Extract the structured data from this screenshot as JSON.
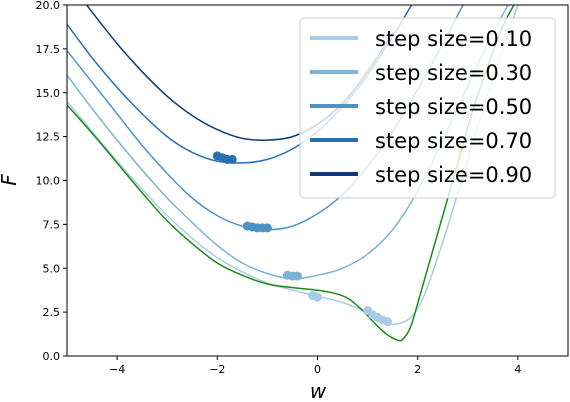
{
  "chart_data": {
    "type": "line",
    "title": "",
    "xlabel": "w",
    "ylabel": "F",
    "xlim": [
      -5,
      5
    ],
    "ylim": [
      0,
      20
    ],
    "grid": false,
    "legend_position": "top-right",
    "x_ticks": [
      -4,
      -2,
      0,
      2,
      4
    ],
    "x_tick_labels": [
      "−4",
      "−2",
      "0",
      "2",
      "4"
    ],
    "y_ticks": [
      0,
      2.5,
      5,
      7.5,
      10,
      12.5,
      15,
      17.5,
      20
    ],
    "y_tick_labels": [
      "0.0",
      "2.5",
      "5.0",
      "7.5",
      "10.0",
      "12.5",
      "15.0",
      "17.5",
      "20.0"
    ],
    "base_curve": {
      "color": "#1a8a1a",
      "x": [
        -5,
        -4.5,
        -4,
        -3.5,
        -3,
        -2.5,
        -2,
        -1.5,
        -1,
        -0.5,
        0,
        0.3,
        0.6,
        0.9,
        1.2,
        1.4,
        1.6,
        1.7,
        1.85,
        2.0,
        2.2,
        2.5,
        2.8,
        3.1,
        3.4,
        3.7,
        4.0
      ],
      "y": [
        14.3,
        12.7,
        11.0,
        9.3,
        7.7,
        6.4,
        5.3,
        4.6,
        4.1,
        3.9,
        3.75,
        3.6,
        3.3,
        2.6,
        1.7,
        1.2,
        0.9,
        0.95,
        1.6,
        3.0,
        5.0,
        8.0,
        11.0,
        14.0,
        16.5,
        18.8,
        20.4
      ]
    },
    "series": [
      {
        "name": "step size=0.10",
        "color": "#a6cde5",
        "x": [
          -5,
          -4.5,
          -4,
          -3.5,
          -3,
          -2.5,
          -2,
          -1.5,
          -1,
          -0.5,
          0,
          0.5,
          1.0,
          1.5,
          2.0,
          2.5,
          3.0,
          3.5,
          4.0
        ],
        "y": [
          14.5,
          12.8,
          11.1,
          9.5,
          8.0,
          6.7,
          5.6,
          4.8,
          4.15,
          3.75,
          3.4,
          3.05,
          2.5,
          1.8,
          2.7,
          6.5,
          11.2,
          15.8,
          20.0
        ],
        "marker_x": [
          -0.1,
          0.0,
          1.0,
          1.1,
          1.2,
          1.3,
          1.4
        ],
        "marker_y": [
          3.45,
          3.35,
          2.6,
          2.35,
          2.2,
          2.05,
          1.95
        ]
      },
      {
        "name": "step size=0.30",
        "color": "#7ab4d8",
        "x": [
          -5,
          -4.5,
          -4,
          -3.5,
          -3,
          -2.5,
          -2,
          -1.5,
          -1,
          -0.5,
          0,
          0.5,
          1.0,
          1.5,
          2.0,
          2.5,
          3.0,
          3.5,
          4.0
        ],
        "y": [
          16.0,
          14.1,
          12.3,
          10.6,
          9.0,
          7.6,
          6.3,
          5.3,
          4.7,
          4.4,
          4.6,
          5.0,
          5.8,
          7.2,
          9.4,
          12.3,
          15.4,
          18.4,
          21.0
        ],
        "marker_x": [
          -0.6,
          -0.5,
          -0.4
        ],
        "marker_y": [
          4.6,
          4.55,
          4.55
        ]
      },
      {
        "name": "step size=0.50",
        "color": "#4f93c6",
        "x": [
          -5,
          -4.5,
          -4,
          -3.5,
          -3,
          -2.5,
          -2,
          -1.5,
          -1,
          -0.5,
          0,
          0.5,
          1.0,
          1.5,
          2.0,
          2.5,
          3.0,
          3.5
        ],
        "y": [
          17.4,
          15.6,
          13.8,
          12.0,
          10.4,
          9.0,
          8.0,
          7.4,
          7.2,
          7.4,
          8.1,
          9.2,
          10.8,
          12.8,
          15.2,
          17.8,
          20.5,
          23.0
        ],
        "marker_x": [
          -1.4,
          -1.3,
          -1.2,
          -1.1,
          -1.0
        ],
        "marker_y": [
          7.4,
          7.35,
          7.3,
          7.3,
          7.3
        ]
      },
      {
        "name": "step size=0.70",
        "color": "#2a6fb0",
        "x": [
          -5,
          -4.5,
          -4,
          -3.5,
          -3,
          -2.5,
          -2,
          -1.5,
          -1,
          -0.5,
          0,
          0.5,
          1.0,
          1.5,
          2.0
        ],
        "y": [
          18.9,
          17.0,
          15.3,
          13.8,
          12.5,
          11.6,
          11.1,
          11.0,
          11.2,
          11.8,
          12.8,
          14.2,
          16.0,
          18.2,
          20.6
        ],
        "marker_x": [
          -2.0,
          -1.9,
          -1.8,
          -1.7
        ],
        "marker_y": [
          11.4,
          11.3,
          11.2,
          11.2
        ]
      },
      {
        "name": "step size=0.90",
        "color": "#0c3c78",
        "x": [
          -5,
          -4.5,
          -4,
          -3.5,
          -3,
          -2.5,
          -2,
          -1.5,
          -1,
          -0.5,
          0,
          0.5,
          1.0,
          1.5
        ],
        "y": [
          21.5,
          19.6,
          17.8,
          16.2,
          14.8,
          13.7,
          12.9,
          12.4,
          12.3,
          12.5,
          13.2,
          14.4,
          16.2,
          18.4
        ],
        "marker_x": [],
        "marker_y": []
      }
    ]
  }
}
